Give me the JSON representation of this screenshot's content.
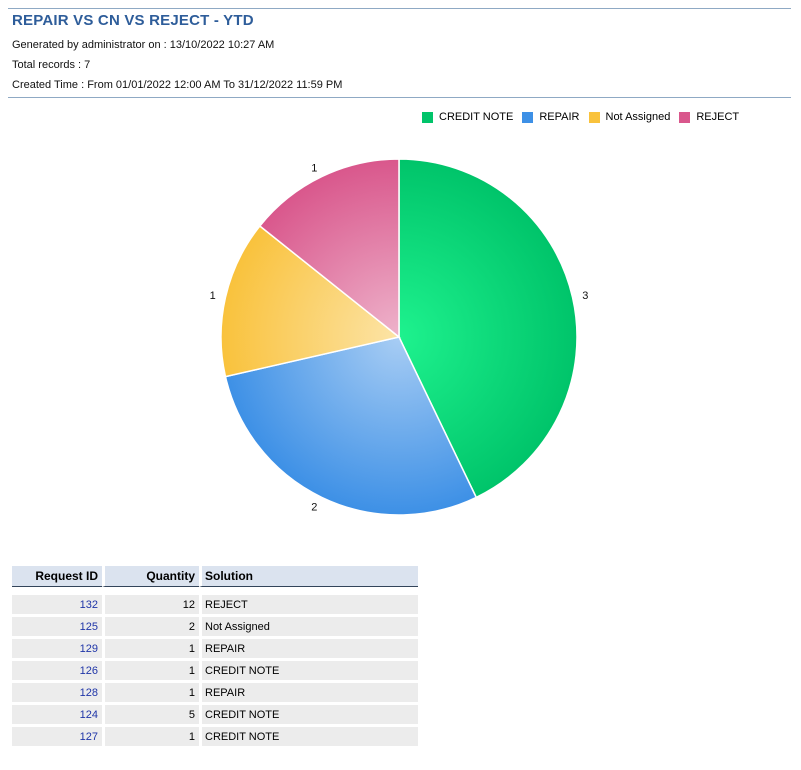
{
  "report": {
    "title": "REPAIR VS CN VS REJECT - YTD",
    "generated": "Generated by administrator  on : 13/10/2022 10:27 AM",
    "total_records": "Total records : 7",
    "created_time": "Created Time : From 01/01/2022 12:00 AM To 31/12/2022 11:59 PM"
  },
  "colors": {
    "title": "#2e5d9a",
    "credit_note": "#00c46a",
    "repair": "#3d90e6",
    "not_assigned": "#f9c23c",
    "reject": "#d9578c"
  },
  "chart_data": {
    "type": "pie",
    "legend_position": "top-right",
    "slices": [
      {
        "name": "CREDIT NOTE",
        "value": 3,
        "label": "3",
        "color": "#00c46a"
      },
      {
        "name": "REPAIR",
        "value": 2,
        "label": "2",
        "color": "#3d90e6"
      },
      {
        "name": "Not Assigned",
        "value": 1,
        "label": "1",
        "color": "#f9c23c"
      },
      {
        "name": "REJECT",
        "value": 1,
        "label": "1",
        "color": "#d9578c"
      }
    ]
  },
  "table": {
    "headers": [
      "Request ID",
      "Quantity",
      "Solution"
    ],
    "rows": [
      {
        "id": "132",
        "qty": "12",
        "solution": "REJECT"
      },
      {
        "id": "125",
        "qty": "2",
        "solution": "Not Assigned"
      },
      {
        "id": "129",
        "qty": "1",
        "solution": "REPAIR"
      },
      {
        "id": "126",
        "qty": "1",
        "solution": "CREDIT NOTE"
      },
      {
        "id": "128",
        "qty": "1",
        "solution": "REPAIR"
      },
      {
        "id": "124",
        "qty": "5",
        "solution": "CREDIT NOTE"
      },
      {
        "id": "127",
        "qty": "1",
        "solution": "CREDIT NOTE"
      }
    ]
  }
}
